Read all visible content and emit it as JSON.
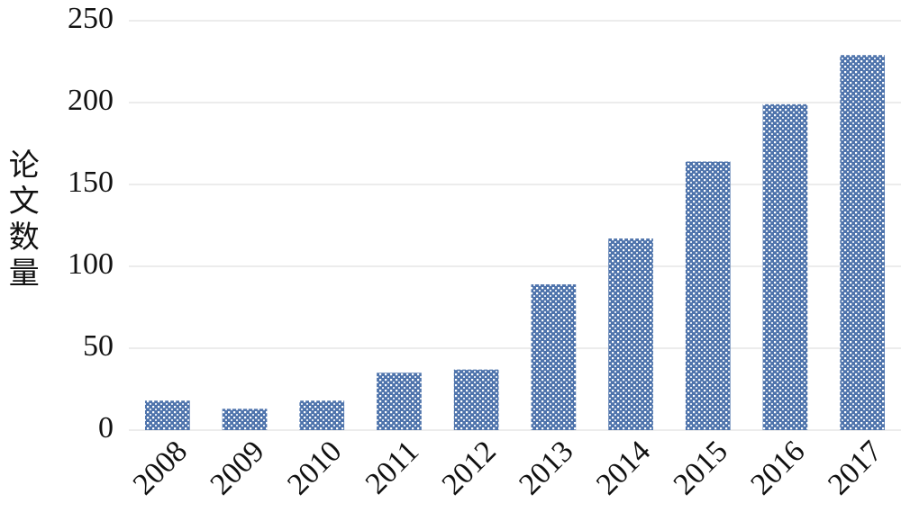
{
  "chart_data": {
    "type": "bar",
    "y_label": "论文数量",
    "categories": [
      "2008",
      "2009",
      "2010",
      "2011",
      "2012",
      "2013",
      "2014",
      "2015",
      "2016",
      "2017"
    ],
    "values": [
      18,
      13,
      18,
      35,
      37,
      89,
      117,
      164,
      199,
      229
    ],
    "color": "#4f74ac",
    "ylim": [
      0,
      250
    ],
    "yticks": [
      0,
      50,
      100,
      150,
      200,
      250
    ],
    "grid": true
  }
}
